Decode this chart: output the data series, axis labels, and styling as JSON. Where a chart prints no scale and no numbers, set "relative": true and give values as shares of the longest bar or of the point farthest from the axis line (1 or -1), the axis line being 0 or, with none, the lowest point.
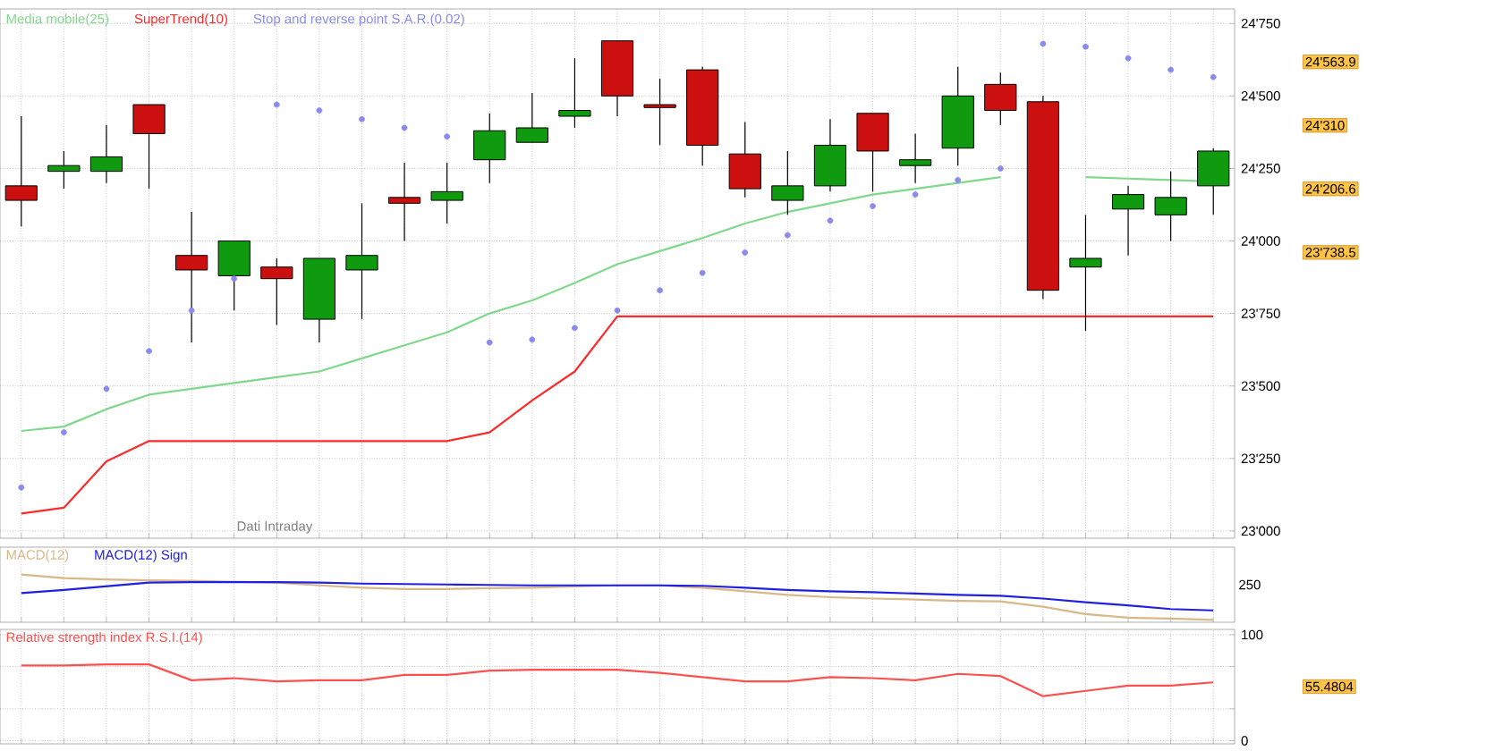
{
  "chart_data": [
    {
      "type": "candlestick",
      "categories": [
        null,
        null,
        null,
        null,
        null,
        null,
        null,
        null,
        null,
        null,
        null,
        null,
        null,
        null,
        null,
        null,
        null,
        null,
        null,
        null,
        null,
        null,
        null,
        null,
        null,
        null,
        null,
        null,
        null
      ],
      "ohlc": [
        [
          24190,
          24430,
          24050,
          24140
        ],
        [
          24240,
          24310,
          24180,
          24260
        ],
        [
          24240,
          24400,
          24200,
          24290
        ],
        [
          24470,
          24470,
          24180,
          24370
        ],
        [
          23950,
          24100,
          23650,
          23900
        ],
        [
          23880,
          24000,
          23760,
          24000
        ],
        [
          23910,
          23940,
          23710,
          23870
        ],
        [
          23730,
          23940,
          23650,
          23940
        ],
        [
          23900,
          24130,
          23730,
          23950
        ],
        [
          24150,
          24270,
          24000,
          24130
        ],
        [
          24140,
          24270,
          24060,
          24170
        ],
        [
          24280,
          24440,
          24200,
          24380
        ],
        [
          24340,
          24510,
          24340,
          24390
        ],
        [
          24430,
          24630,
          24390,
          24450
        ],
        [
          24690,
          24690,
          24430,
          24500
        ],
        [
          24470,
          24560,
          24330,
          24460
        ],
        [
          24590,
          24600,
          24260,
          24330
        ],
        [
          24300,
          24410,
          24150,
          24180
        ],
        [
          24140,
          24310,
          24090,
          24190
        ],
        [
          24190,
          24420,
          24170,
          24330
        ],
        [
          24440,
          24440,
          24170,
          24310
        ],
        [
          24260,
          24370,
          24200,
          24280
        ],
        [
          24320,
          24600,
          24260,
          24500
        ],
        [
          24540,
          24580,
          24400,
          24450
        ],
        [
          24480,
          24500,
          23800,
          23830
        ],
        [
          23910,
          24090,
          23690,
          23940
        ],
        [
          24110,
          24190,
          23950,
          24160
        ],
        [
          24090,
          24240,
          24000,
          24150
        ],
        [
          24190,
          24320,
          24090,
          24310
        ]
      ],
      "series": [
        {
          "name": "Media mobile(25)",
          "type": "line",
          "color": "#80d88c",
          "values": [
            23345,
            23360,
            23420,
            23470,
            23490,
            23510,
            23530,
            23550,
            23595,
            23640,
            23685,
            23750,
            23795,
            23855,
            23920,
            23965,
            24010,
            24060,
            24100,
            24130,
            24160,
            24180,
            24200,
            24220,
            null,
            24220,
            24215,
            24210,
            24205
          ]
        },
        {
          "name": "SuperTrend(10)",
          "type": "line",
          "color": "#ff2a2a",
          "values": [
            23060,
            23080,
            23240,
            23310,
            23310,
            23310,
            23310,
            23310,
            23310,
            23310,
            23310,
            23340,
            23450,
            23550,
            23740,
            23740,
            23740,
            23740,
            23740,
            23740,
            23740,
            23740,
            23740,
            23740,
            23740,
            23740,
            23740,
            23740,
            23740
          ]
        },
        {
          "name": "Stop and reverse point S.A.R.(0.02)",
          "type": "scatter",
          "color": "#8a8aee",
          "values": [
            23150,
            23340,
            23490,
            23620,
            23760,
            23870,
            24470,
            24450,
            24420,
            24390,
            24360,
            23650,
            23660,
            23700,
            23760,
            23830,
            23890,
            23960,
            24020,
            24070,
            24120,
            24160,
            24210,
            24250,
            24680,
            24670,
            24630,
            24590,
            24565
          ]
        }
      ],
      "ylim": [
        22975,
        24800
      ],
      "yticks": [
        {
          "value": 23000,
          "label": "23'000"
        },
        {
          "value": 23250,
          "label": "23'250"
        },
        {
          "value": 23500,
          "label": "23'500"
        },
        {
          "value": 23750,
          "label": "23'750"
        },
        {
          "value": 24000,
          "label": "24'000"
        },
        {
          "value": 24250,
          "label": "24'250"
        },
        {
          "value": 24500,
          "label": "24'500"
        },
        {
          "value": 24750,
          "label": "24'750"
        }
      ],
      "grid": true,
      "legend": "top left",
      "annotations": [
        "24'563.9",
        "24'310",
        "24'206.6",
        "23'738.5",
        "Dati Intraday"
      ]
    },
    {
      "type": "line",
      "relative": true,
      "categories": [
        null,
        null,
        null,
        null,
        null,
        null,
        null,
        null,
        null,
        null,
        null,
        null,
        null,
        null,
        null,
        null,
        null,
        null,
        null,
        null,
        null,
        null,
        null,
        null,
        null,
        null,
        null,
        null,
        null
      ],
      "series": [
        {
          "name": "MACD(12)",
          "color": "#d8b888",
          "values": [
            1.0,
            0.92,
            0.89,
            0.87,
            0.86,
            0.84,
            0.82,
            0.76,
            0.71,
            0.68,
            0.68,
            0.7,
            0.71,
            0.74,
            0.76,
            0.76,
            0.71,
            0.63,
            0.55,
            0.5,
            0.47,
            0.45,
            0.42,
            0.41,
            0.29,
            0.13,
            0.05,
            0.03,
            0
          ]
        },
        {
          "name": "MACD(12) Sign",
          "color": "#2020e0",
          "values": [
            0.59,
            0.66,
            0.74,
            0.82,
            0.83,
            0.83,
            0.83,
            0.82,
            0.8,
            0.79,
            0.78,
            0.77,
            0.76,
            0.76,
            0.76,
            0.76,
            0.75,
            0.71,
            0.66,
            0.63,
            0.61,
            0.58,
            0.55,
            0.53,
            0.47,
            0.39,
            0.32,
            0.24,
            0.21
          ]
        }
      ],
      "grid": true,
      "legend": "top left",
      "annotations": [
        "250"
      ]
    },
    {
      "type": "line",
      "categories": [
        null,
        null,
        null,
        null,
        null,
        null,
        null,
        null,
        null,
        null,
        null,
        null,
        null,
        null,
        null,
        null,
        null,
        null,
        null,
        null,
        null,
        null,
        null,
        null,
        null,
        null,
        null,
        null,
        null
      ],
      "series": [
        {
          "name": "Relative strength index R.S.I.(14)",
          "color": "#ff5050",
          "values": [
            71,
            71,
            72,
            72,
            57,
            59,
            56,
            57,
            57,
            62,
            62,
            66,
            67,
            67,
            67,
            64,
            60,
            56,
            56,
            60,
            59,
            57,
            63,
            61,
            42,
            47,
            52,
            52,
            55
          ]
        }
      ],
      "ylim": [
        -3,
        105
      ],
      "yticks": [
        0,
        {
          "value": 30,
          "label": null
        },
        {
          "value": 70,
          "label": null
        },
        100
      ],
      "grid": true,
      "legend": "top left",
      "annotations": [
        "55.4804"
      ]
    }
  ]
}
